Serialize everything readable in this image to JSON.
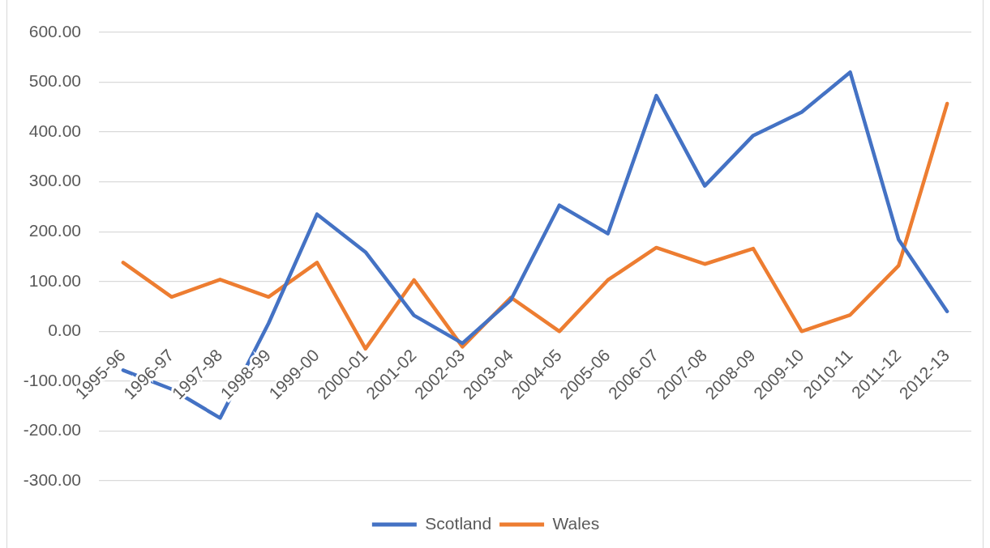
{
  "chart_data": {
    "type": "line",
    "categories": [
      "1995-96",
      "1996-97",
      "1997-98",
      "1998-99",
      "1999-00",
      "2000-01",
      "2001-02",
      "2002-03",
      "2003-04",
      "2004-05",
      "2005-06",
      "2006-07",
      "2007-08",
      "2008-09",
      "2009-10",
      "2010-11",
      "2011-12",
      "2012-13"
    ],
    "series": [
      {
        "name": "Scotland",
        "color": "#4472c4",
        "values": [
          -78,
          -116,
          -174,
          16,
          235,
          159,
          32,
          -24,
          63,
          253,
          196,
          473,
          292,
          393,
          440,
          520,
          184,
          40
        ]
      },
      {
        "name": "Wales",
        "color": "#ed7d31",
        "values": [
          138,
          69,
          104,
          69,
          138,
          -35,
          103,
          -31,
          68,
          0,
          103,
          168,
          135,
          166,
          0,
          33,
          132,
          457
        ]
      }
    ],
    "ylim": [
      -300,
      600
    ],
    "yticks": [
      {
        "value": -300,
        "label": "-300.00"
      },
      {
        "value": -200,
        "label": "-200.00"
      },
      {
        "value": -100,
        "label": "-100.00"
      },
      {
        "value": 0,
        "label": "0.00"
      },
      {
        "value": 100,
        "label": "100.00"
      },
      {
        "value": 200,
        "label": "200.00"
      },
      {
        "value": 300,
        "label": "300.00"
      },
      {
        "value": 400,
        "label": "400.00"
      },
      {
        "value": 500,
        "label": "500.00"
      },
      {
        "value": 600,
        "label": "600.00"
      }
    ],
    "grid": "y",
    "legend": "bottom"
  }
}
